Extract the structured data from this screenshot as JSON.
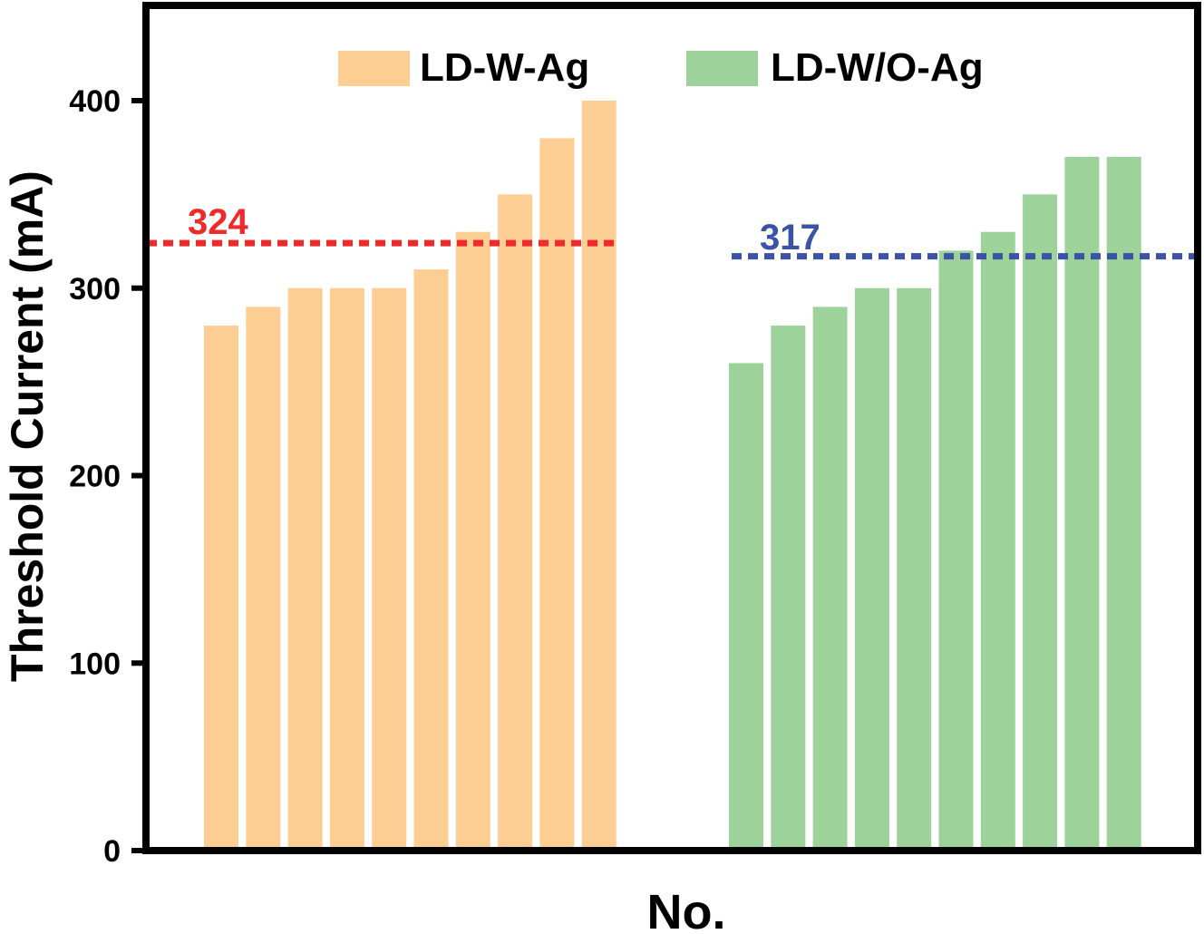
{
  "chart_data": {
    "type": "bar",
    "title": "",
    "xlabel": "No.",
    "ylabel": "Threshold Current (mA)",
    "ylim": [
      0,
      450
    ],
    "yticks": [
      0,
      100,
      200,
      300,
      400
    ],
    "ytick_labels": [
      "0",
      "100",
      "200",
      "300",
      "400"
    ],
    "grid": false,
    "legend_position": "top",
    "series": [
      {
        "name": "LD-W-Ag",
        "color": "#FDCE94",
        "values": [
          280,
          290,
          300,
          300,
          300,
          310,
          330,
          350,
          380,
          400
        ]
      },
      {
        "name": "LD-W/O-Ag",
        "color": "#9DD29B",
        "values": [
          260,
          280,
          290,
          300,
          300,
          320,
          330,
          350,
          370,
          370
        ]
      }
    ],
    "reference_lines": [
      {
        "value": 324,
        "label": "324",
        "color": "#EE2A2A",
        "style": "dotted",
        "series": "LD-W-Ag"
      },
      {
        "value": 317,
        "label": "317",
        "color": "#3A53A4",
        "style": "dotted",
        "series": "LD-W/O-Ag"
      }
    ]
  }
}
